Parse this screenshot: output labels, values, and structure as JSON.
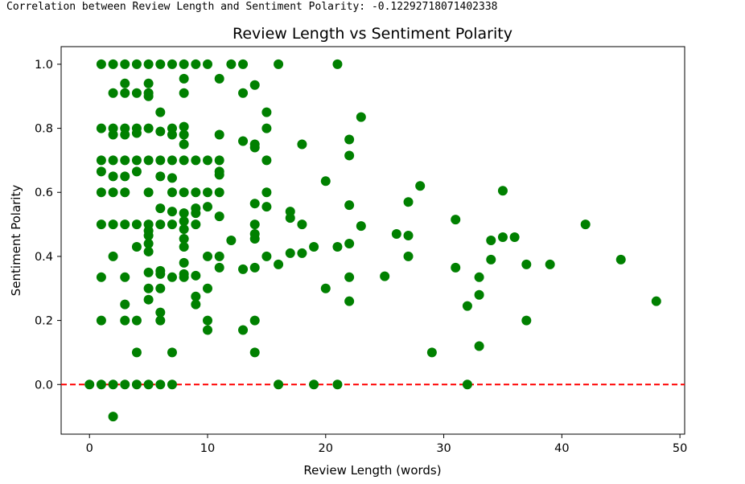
{
  "console": {
    "output_line": "Correlation between Review Length and Sentiment Polarity: -0.12292718071402338"
  },
  "chart_data": {
    "type": "scatter",
    "title": "Review Length vs Sentiment Polarity",
    "xlabel": "Review Length (words)",
    "ylabel": "Sentiment Polarity",
    "xlim": [
      -2.4,
      50.4
    ],
    "ylim": [
      -0.155,
      1.055
    ],
    "xticks": [
      0,
      10,
      20,
      30,
      40,
      50
    ],
    "xtick_labels": [
      "0",
      "10",
      "20",
      "30",
      "40",
      "50"
    ],
    "yticks": [
      0.0,
      0.2,
      0.4,
      0.6,
      0.8,
      1.0
    ],
    "ytick_labels": [
      "0.0",
      "0.2",
      "0.4",
      "0.6",
      "0.8",
      "1.0"
    ],
    "grid": false,
    "legend": "none",
    "marker_color": "#008000",
    "reference_line": {
      "y": 0.0,
      "color": "#ff0000",
      "style": "dashed"
    },
    "points": [
      [
        0,
        0
      ],
      [
        1,
        0
      ],
      [
        2,
        0
      ],
      [
        3,
        0
      ],
      [
        4,
        0
      ],
      [
        5,
        0
      ],
      [
        6,
        0
      ],
      [
        7,
        0
      ],
      [
        16,
        0
      ],
      [
        19,
        0
      ],
      [
        21,
        0
      ],
      [
        32,
        0
      ],
      [
        2,
        -0.1
      ],
      [
        1,
        1
      ],
      [
        2,
        1
      ],
      [
        3,
        1
      ],
      [
        4,
        1
      ],
      [
        5,
        1
      ],
      [
        6,
        1
      ],
      [
        7,
        1
      ],
      [
        8,
        1
      ],
      [
        9,
        1
      ],
      [
        10,
        1
      ],
      [
        12,
        1
      ],
      [
        13,
        1
      ],
      [
        16,
        1
      ],
      [
        21,
        1
      ],
      [
        2,
        0.91
      ],
      [
        3,
        0.91
      ],
      [
        4,
        0.91
      ],
      [
        5,
        0.9
      ],
      [
        5,
        0.91
      ],
      [
        8,
        0.91
      ],
      [
        13,
        0.91
      ],
      [
        3,
        0.94
      ],
      [
        5,
        0.94
      ],
      [
        8,
        0.955
      ],
      [
        11,
        0.955
      ],
      [
        14,
        0.935
      ],
      [
        6,
        0.85
      ],
      [
        15,
        0.85
      ],
      [
        23,
        0.835
      ],
      [
        1,
        0.8
      ],
      [
        2,
        0.8
      ],
      [
        3,
        0.8
      ],
      [
        4,
        0.8
      ],
      [
        5,
        0.8
      ],
      [
        7,
        0.8
      ],
      [
        8,
        0.805
      ],
      [
        15,
        0.8
      ],
      [
        2,
        0.78
      ],
      [
        3,
        0.78
      ],
      [
        4,
        0.785
      ],
      [
        6,
        0.79
      ],
      [
        7,
        0.78
      ],
      [
        8,
        0.78
      ],
      [
        11,
        0.78
      ],
      [
        22,
        0.765
      ],
      [
        8,
        0.75
      ],
      [
        13,
        0.76
      ],
      [
        14,
        0.75
      ],
      [
        14,
        0.74
      ],
      [
        18,
        0.75
      ],
      [
        22,
        0.715
      ],
      [
        1,
        0.7
      ],
      [
        2,
        0.7
      ],
      [
        3,
        0.7
      ],
      [
        4,
        0.7
      ],
      [
        5,
        0.7
      ],
      [
        6,
        0.7
      ],
      [
        7,
        0.7
      ],
      [
        8,
        0.7
      ],
      [
        9,
        0.7
      ],
      [
        10,
        0.7
      ],
      [
        11,
        0.7
      ],
      [
        15,
        0.7
      ],
      [
        1,
        0.665
      ],
      [
        2,
        0.65
      ],
      [
        3,
        0.65
      ],
      [
        4,
        0.665
      ],
      [
        6,
        0.65
      ],
      [
        7,
        0.645
      ],
      [
        11,
        0.665
      ],
      [
        11,
        0.655
      ],
      [
        1,
        0.6
      ],
      [
        2,
        0.6
      ],
      [
        3,
        0.6
      ],
      [
        5,
        0.6
      ],
      [
        7,
        0.6
      ],
      [
        8,
        0.6
      ],
      [
        9,
        0.6
      ],
      [
        10,
        0.6
      ],
      [
        11,
        0.6
      ],
      [
        15,
        0.6
      ],
      [
        20,
        0.635
      ],
      [
        28,
        0.62
      ],
      [
        35,
        0.605
      ],
      [
        6,
        0.55
      ],
      [
        7,
        0.54
      ],
      [
        8,
        0.535
      ],
      [
        9,
        0.55
      ],
      [
        9,
        0.535
      ],
      [
        10,
        0.555
      ],
      [
        11,
        0.525
      ],
      [
        14,
        0.565
      ],
      [
        15,
        0.555
      ],
      [
        17,
        0.54
      ],
      [
        17,
        0.52
      ],
      [
        22,
        0.56
      ],
      [
        27,
        0.57
      ],
      [
        31,
        0.515
      ],
      [
        1,
        0.5
      ],
      [
        2,
        0.5
      ],
      [
        3,
        0.5
      ],
      [
        4,
        0.5
      ],
      [
        5,
        0.5
      ],
      [
        6,
        0.5
      ],
      [
        7,
        0.5
      ],
      [
        8,
        0.51
      ],
      [
        9,
        0.5
      ],
      [
        14,
        0.5
      ],
      [
        18,
        0.5
      ],
      [
        23,
        0.495
      ],
      [
        42,
        0.5
      ],
      [
        5,
        0.48
      ],
      [
        5,
        0.465
      ],
      [
        8,
        0.485
      ],
      [
        8,
        0.455
      ],
      [
        12,
        0.45
      ],
      [
        14,
        0.47
      ],
      [
        14,
        0.455
      ],
      [
        22,
        0.44
      ],
      [
        21,
        0.43
      ],
      [
        26,
        0.47
      ],
      [
        27,
        0.465
      ],
      [
        34,
        0.45
      ],
      [
        35,
        0.46
      ],
      [
        36,
        0.46
      ],
      [
        4,
        0.43
      ],
      [
        5,
        0.44
      ],
      [
        5,
        0.415
      ],
      [
        8,
        0.43
      ],
      [
        10,
        0.4
      ],
      [
        11,
        0.4
      ],
      [
        15,
        0.4
      ],
      [
        17,
        0.41
      ],
      [
        18,
        0.41
      ],
      [
        19,
        0.43
      ],
      [
        27,
        0.4
      ],
      [
        34,
        0.39
      ],
      [
        45,
        0.39
      ],
      [
        2,
        0.4
      ],
      [
        8,
        0.38
      ],
      [
        11,
        0.365
      ],
      [
        13,
        0.36
      ],
      [
        14,
        0.365
      ],
      [
        16,
        0.375
      ],
      [
        31,
        0.365
      ],
      [
        37,
        0.375
      ],
      [
        39,
        0.375
      ],
      [
        1,
        0.335
      ],
      [
        3,
        0.335
      ],
      [
        5,
        0.35
      ],
      [
        6,
        0.355
      ],
      [
        6,
        0.345
      ],
      [
        7,
        0.335
      ],
      [
        8,
        0.345
      ],
      [
        8,
        0.335
      ],
      [
        9,
        0.34
      ],
      [
        22,
        0.335
      ],
      [
        25,
        0.338
      ],
      [
        33,
        0.335
      ],
      [
        5,
        0.3
      ],
      [
        6,
        0.3
      ],
      [
        10,
        0.3
      ],
      [
        20,
        0.3
      ],
      [
        33,
        0.28
      ],
      [
        5,
        0.265
      ],
      [
        9,
        0.275
      ],
      [
        9,
        0.25
      ],
      [
        3,
        0.25
      ],
      [
        6,
        0.225
      ],
      [
        22,
        0.26
      ],
      [
        32,
        0.245
      ],
      [
        48,
        0.26
      ],
      [
        1,
        0.2
      ],
      [
        3,
        0.2
      ],
      [
        4,
        0.2
      ],
      [
        6,
        0.2
      ],
      [
        10,
        0.2
      ],
      [
        14,
        0.2
      ],
      [
        37,
        0.2
      ],
      [
        10,
        0.17
      ],
      [
        13,
        0.17
      ],
      [
        33,
        0.12
      ],
      [
        4,
        0.1
      ],
      [
        7,
        0.1
      ],
      [
        14,
        0.1
      ],
      [
        29,
        0.1
      ]
    ]
  }
}
